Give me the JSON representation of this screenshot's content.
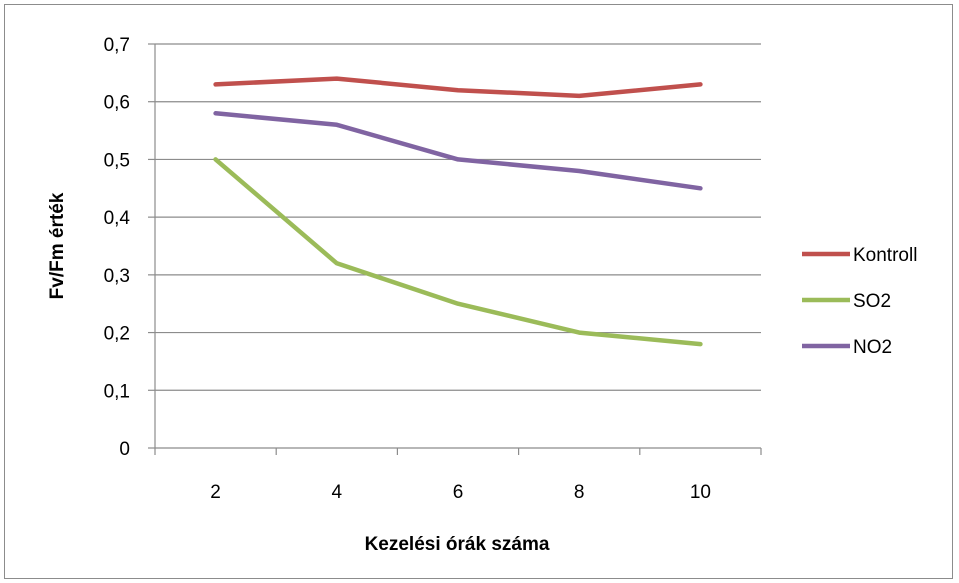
{
  "chart_data": {
    "type": "line",
    "title": "",
    "xlabel": "Kezelési órák száma",
    "ylabel": "Fv/Fm érték",
    "categories": [
      "2",
      "4",
      "6",
      "8",
      "10"
    ],
    "ylim": [
      0,
      0.7
    ],
    "yticks": [
      "0",
      "0,1",
      "0,2",
      "0,3",
      "0,4",
      "0,5",
      "0,6",
      "0,7"
    ],
    "grid": "horizontal",
    "legend_position": "right",
    "series": [
      {
        "name": "Kontroll",
        "color": "#c0504d",
        "values": [
          0.63,
          0.64,
          0.62,
          0.61,
          0.63
        ]
      },
      {
        "name": "SO2",
        "color": "#9bbb59",
        "values": [
          0.5,
          0.32,
          0.25,
          0.2,
          0.18
        ]
      },
      {
        "name": "NO2",
        "color": "#8064a2",
        "values": [
          0.58,
          0.56,
          0.5,
          0.48,
          0.45
        ]
      }
    ]
  }
}
